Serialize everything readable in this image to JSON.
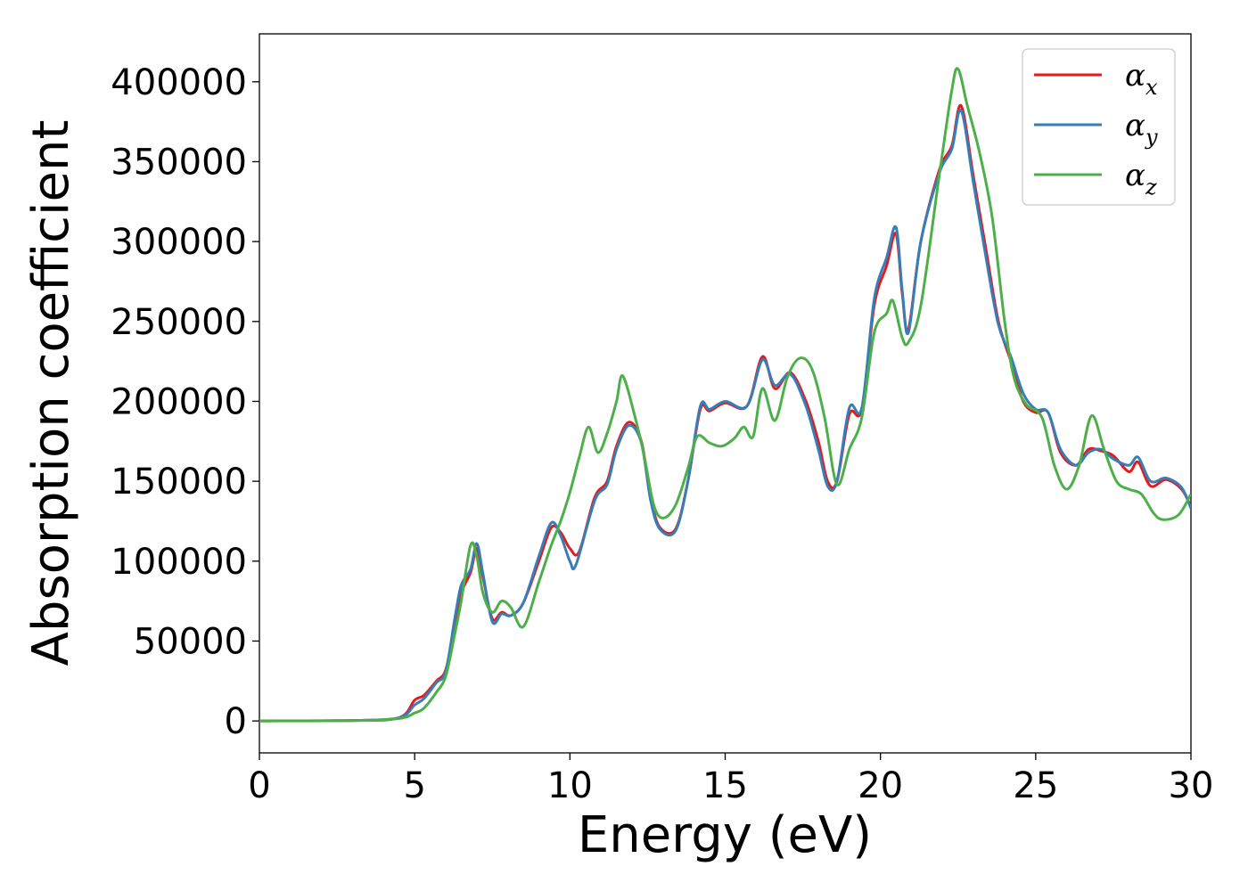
{
  "chart_data": {
    "type": "line",
    "title": "",
    "xlabel": "Energy (eV)",
    "ylabel": "Absorption coefficient",
    "xlim": [
      0,
      30
    ],
    "ylim": [
      -20000,
      430000
    ],
    "xticks": [
      "0",
      "5",
      "10",
      "15",
      "20",
      "25",
      "30"
    ],
    "yticks": [
      "0",
      "50000",
      "100000",
      "150000",
      "200000",
      "250000",
      "300000",
      "350000",
      "400000"
    ],
    "grid": false,
    "legend_position": "top-right",
    "series": [
      {
        "name": "α",
        "sub": "x",
        "color": "#e41a1c",
        "points": [
          [
            0,
            0
          ],
          [
            3,
            300
          ],
          [
            4.5,
            2000
          ],
          [
            5,
            13000
          ],
          [
            5.3,
            16000
          ],
          [
            5.7,
            25000
          ],
          [
            6,
            32000
          ],
          [
            6.3,
            60000
          ],
          [
            6.5,
            80000
          ],
          [
            6.8,
            93000
          ],
          [
            7,
            108000
          ],
          [
            7.2,
            90000
          ],
          [
            7.5,
            64000
          ],
          [
            7.8,
            68000
          ],
          [
            8.1,
            66000
          ],
          [
            8.5,
            74000
          ],
          [
            9,
            100000
          ],
          [
            9.4,
            121000
          ],
          [
            9.7,
            118000
          ],
          [
            10,
            108000
          ],
          [
            10.3,
            106000
          ],
          [
            10.8,
            140000
          ],
          [
            11.2,
            150000
          ],
          [
            11.5,
            172000
          ],
          [
            11.9,
            187000
          ],
          [
            12.3,
            175000
          ],
          [
            12.6,
            140000
          ],
          [
            12.9,
            121000
          ],
          [
            13.4,
            120000
          ],
          [
            13.8,
            150000
          ],
          [
            14.2,
            195000
          ],
          [
            14.5,
            194000
          ],
          [
            15,
            199000
          ],
          [
            15.7,
            197000
          ],
          [
            16.2,
            228000
          ],
          [
            16.6,
            208000
          ],
          [
            17.1,
            218000
          ],
          [
            17.6,
            200000
          ],
          [
            18,
            175000
          ],
          [
            18.3,
            150000
          ],
          [
            18.6,
            150000
          ],
          [
            19,
            192000
          ],
          [
            19.4,
            195000
          ],
          [
            19.8,
            260000
          ],
          [
            20.2,
            285000
          ],
          [
            20.5,
            305000
          ],
          [
            20.7,
            268000
          ],
          [
            20.9,
            245000
          ],
          [
            21.3,
            300000
          ],
          [
            21.9,
            345000
          ],
          [
            22.3,
            360000
          ],
          [
            22.6,
            385000
          ],
          [
            23,
            340000
          ],
          [
            23.4,
            295000
          ],
          [
            23.8,
            250000
          ],
          [
            24.2,
            225000
          ],
          [
            24.6,
            200000
          ],
          [
            25,
            193000
          ],
          [
            25.4,
            193000
          ],
          [
            25.8,
            168000
          ],
          [
            26.3,
            160000
          ],
          [
            26.7,
            170000
          ],
          [
            27.1,
            169000
          ],
          [
            27.5,
            166000
          ],
          [
            28,
            156000
          ],
          [
            28.3,
            162000
          ],
          [
            28.7,
            147000
          ],
          [
            29.2,
            151000
          ],
          [
            29.7,
            145000
          ],
          [
            30,
            134000
          ]
        ]
      },
      {
        "name": "α",
        "sub": "y",
        "color": "#377eb8",
        "points": [
          [
            0,
            0
          ],
          [
            3,
            300
          ],
          [
            4.5,
            2000
          ],
          [
            5,
            10000
          ],
          [
            5.3,
            14000
          ],
          [
            5.7,
            24000
          ],
          [
            6,
            31000
          ],
          [
            6.3,
            65000
          ],
          [
            6.5,
            85000
          ],
          [
            6.8,
            95000
          ],
          [
            7,
            111000
          ],
          [
            7.2,
            92000
          ],
          [
            7.5,
            62000
          ],
          [
            7.8,
            67000
          ],
          [
            8.1,
            66000
          ],
          [
            8.5,
            74000
          ],
          [
            9,
            103000
          ],
          [
            9.4,
            124000
          ],
          [
            9.7,
            116000
          ],
          [
            10,
            100000
          ],
          [
            10.2,
            98000
          ],
          [
            10.8,
            138000
          ],
          [
            11.2,
            148000
          ],
          [
            11.5,
            170000
          ],
          [
            11.9,
            185000
          ],
          [
            12.3,
            174000
          ],
          [
            12.6,
            138000
          ],
          [
            12.9,
            120000
          ],
          [
            13.4,
            119000
          ],
          [
            13.8,
            150000
          ],
          [
            14.2,
            197000
          ],
          [
            14.5,
            195000
          ],
          [
            15,
            200000
          ],
          [
            15.7,
            197000
          ],
          [
            16.2,
            226000
          ],
          [
            16.6,
            210000
          ],
          [
            17.1,
            217000
          ],
          [
            17.6,
            197000
          ],
          [
            18,
            170000
          ],
          [
            18.3,
            147000
          ],
          [
            18.6,
            150000
          ],
          [
            19,
            196000
          ],
          [
            19.4,
            196000
          ],
          [
            19.8,
            264000
          ],
          [
            20.2,
            290000
          ],
          [
            20.5,
            309000
          ],
          [
            20.7,
            270000
          ],
          [
            20.9,
            243000
          ],
          [
            21.3,
            300000
          ],
          [
            21.9,
            343000
          ],
          [
            22.3,
            358000
          ],
          [
            22.6,
            382000
          ],
          [
            23,
            336000
          ],
          [
            23.4,
            290000
          ],
          [
            23.8,
            248000
          ],
          [
            24.2,
            228000
          ],
          [
            24.6,
            205000
          ],
          [
            25,
            195000
          ],
          [
            25.4,
            193000
          ],
          [
            25.8,
            170000
          ],
          [
            26.3,
            160000
          ],
          [
            26.7,
            168000
          ],
          [
            27.1,
            170000
          ],
          [
            27.5,
            164000
          ],
          [
            28,
            160000
          ],
          [
            28.3,
            165000
          ],
          [
            28.7,
            150000
          ],
          [
            29.2,
            152000
          ],
          [
            29.7,
            146000
          ],
          [
            30,
            133000
          ]
        ]
      },
      {
        "name": "α",
        "sub": "z",
        "color": "#4daf4a",
        "points": [
          [
            0,
            0
          ],
          [
            3,
            200
          ],
          [
            4.5,
            1500
          ],
          [
            5,
            5000
          ],
          [
            5.3,
            8000
          ],
          [
            5.7,
            18000
          ],
          [
            6,
            28000
          ],
          [
            6.3,
            55000
          ],
          [
            6.5,
            75000
          ],
          [
            6.8,
            110000
          ],
          [
            7,
            103000
          ],
          [
            7.2,
            80000
          ],
          [
            7.5,
            68000
          ],
          [
            7.8,
            75000
          ],
          [
            8.1,
            71000
          ],
          [
            8.5,
            59000
          ],
          [
            9,
            87000
          ],
          [
            9.4,
            110000
          ],
          [
            9.7,
            125000
          ],
          [
            10,
            143000
          ],
          [
            10.3,
            165000
          ],
          [
            10.6,
            184000
          ],
          [
            10.9,
            168000
          ],
          [
            11.2,
            180000
          ],
          [
            11.5,
            200000
          ],
          [
            11.7,
            216000
          ],
          [
            12.1,
            190000
          ],
          [
            12.4,
            165000
          ],
          [
            12.7,
            135000
          ],
          [
            13,
            127000
          ],
          [
            13.4,
            135000
          ],
          [
            13.8,
            158000
          ],
          [
            14.1,
            178000
          ],
          [
            14.5,
            174000
          ],
          [
            14.9,
            172000
          ],
          [
            15.3,
            177000
          ],
          [
            15.6,
            184000
          ],
          [
            15.9,
            178000
          ],
          [
            16.2,
            208000
          ],
          [
            16.6,
            188000
          ],
          [
            17,
            215000
          ],
          [
            17.4,
            227000
          ],
          [
            17.8,
            220000
          ],
          [
            18.2,
            190000
          ],
          [
            18.6,
            148000
          ],
          [
            19,
            170000
          ],
          [
            19.4,
            190000
          ],
          [
            19.8,
            243000
          ],
          [
            20.2,
            255000
          ],
          [
            20.4,
            263000
          ],
          [
            20.7,
            240000
          ],
          [
            20.9,
            237000
          ],
          [
            21.3,
            260000
          ],
          [
            21.9,
            342000
          ],
          [
            22.3,
            395000
          ],
          [
            22.5,
            408000
          ],
          [
            22.8,
            385000
          ],
          [
            23.2,
            355000
          ],
          [
            23.6,
            315000
          ],
          [
            24,
            250000
          ],
          [
            24.3,
            215000
          ],
          [
            24.7,
            198000
          ],
          [
            25.2,
            190000
          ],
          [
            25.6,
            160000
          ],
          [
            26,
            145000
          ],
          [
            26.4,
            160000
          ],
          [
            26.8,
            191000
          ],
          [
            27.2,
            170000
          ],
          [
            27.6,
            150000
          ],
          [
            28,
            145000
          ],
          [
            28.4,
            142000
          ],
          [
            28.8,
            130000
          ],
          [
            29.1,
            126000
          ],
          [
            29.6,
            129000
          ],
          [
            30,
            142000
          ]
        ]
      }
    ]
  }
}
